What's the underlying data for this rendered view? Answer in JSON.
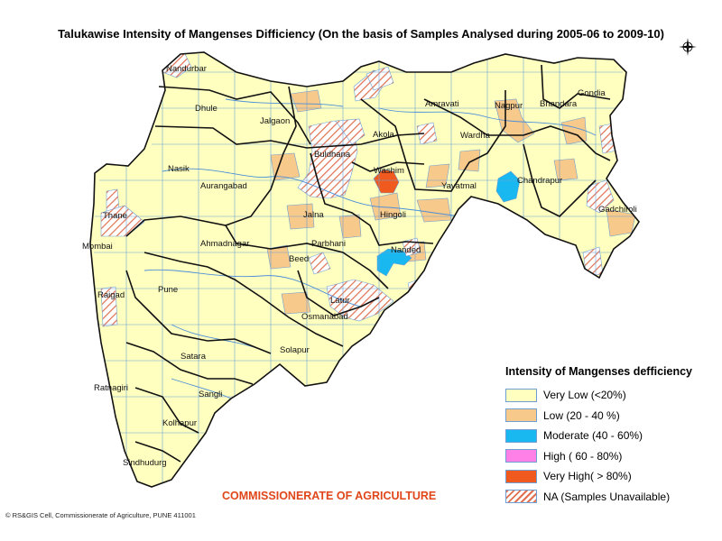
{
  "title": "Talukawise Intensity of Mangenses Difficiency  (On the basis of Samples Analysed during 2005-06 to 2009-10)",
  "compass": {
    "icon": "compass-rose-icon"
  },
  "colors": {
    "very_low": "#ffffc0",
    "low": "#f7c98b",
    "moderate": "#19b8f0",
    "high": "#ff80e6",
    "very_high": "#f05a1e",
    "na_hatch": "#e07050",
    "boundary": "#111111",
    "taluka_line": "#6f9fd2",
    "river": "#4d8fd8"
  },
  "districts": [
    {
      "name": "Nandurbar"
    },
    {
      "name": "Dhule"
    },
    {
      "name": "Jalgaon"
    },
    {
      "name": "Amravati"
    },
    {
      "name": "Nagpur"
    },
    {
      "name": "Bhandara"
    },
    {
      "name": "Gondia"
    },
    {
      "name": "Akola"
    },
    {
      "name": "Buldhana"
    },
    {
      "name": "Wardha"
    },
    {
      "name": "Nasik"
    },
    {
      "name": "Washim"
    },
    {
      "name": "Yavatmal"
    },
    {
      "name": "Chandrapur"
    },
    {
      "name": "Aurangabad"
    },
    {
      "name": "Thane"
    },
    {
      "name": "Jalna"
    },
    {
      "name": "Hingoli"
    },
    {
      "name": "Gadchiroli"
    },
    {
      "name": "Mombai"
    },
    {
      "name": "Ahmadnagar"
    },
    {
      "name": "Parbhani"
    },
    {
      "name": "Beed"
    },
    {
      "name": "Nanded"
    },
    {
      "name": "Raigad"
    },
    {
      "name": "Pune"
    },
    {
      "name": "Latur"
    },
    {
      "name": "Osmanabad"
    },
    {
      "name": "Solapur"
    },
    {
      "name": "Satara"
    },
    {
      "name": "Ratnagiri"
    },
    {
      "name": "Sangli"
    },
    {
      "name": "Kolhapur"
    },
    {
      "name": "Sindhudurg"
    }
  ],
  "legend": {
    "title": "Intensity of Mangenses defficiency",
    "items": [
      {
        "label": "Very Low (<20%)",
        "color": "#ffffc0"
      },
      {
        "label": "Low (20 - 40 %)",
        "color": "#f7c98b"
      },
      {
        "label": "Moderate (40 - 60%)",
        "color": "#19b8f0"
      },
      {
        "label": "High ( 60 - 80%)",
        "color": "#ff80e6"
      },
      {
        "label": "Very High( > 80%)",
        "color": "#f05a1e"
      },
      {
        "label": "NA (Samples Unavailable)",
        "color": "hatch"
      }
    ]
  },
  "footer": {
    "organization": "COMMISSIONERATE OF AGRICULTURE",
    "credit": "© RS&GIS Cell, Commissionerate of Agriculture, PUNE 411001"
  }
}
